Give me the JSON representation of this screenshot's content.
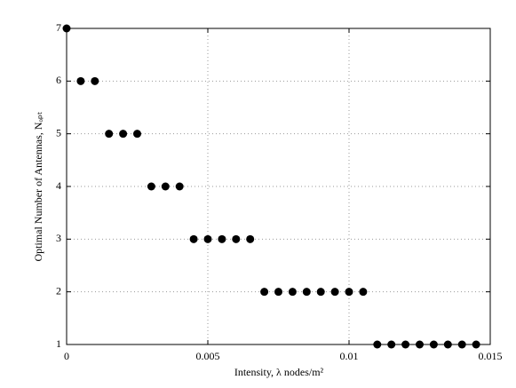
{
  "chart_data": {
    "type": "scatter",
    "xlabel": "Intensity, λ nodes/m²",
    "ylabel": "Optimal Number of Antennas, Nₒₚₜ",
    "x": [
      0,
      0.0005,
      0.001,
      0.0015,
      0.002,
      0.0025,
      0.003,
      0.0035,
      0.004,
      0.0045,
      0.005,
      0.0055,
      0.006,
      0.0065,
      0.007,
      0.0075,
      0.008,
      0.0085,
      0.009,
      0.0095,
      0.01,
      0.0105,
      0.011,
      0.0115,
      0.012,
      0.0125,
      0.013,
      0.0135,
      0.014,
      0.0145
    ],
    "values": [
      7,
      6,
      6,
      5,
      5,
      5,
      4,
      4,
      4,
      3,
      3,
      3,
      3,
      3,
      2,
      2,
      2,
      2,
      2,
      2,
      2,
      2,
      1,
      1,
      1,
      1,
      1,
      1,
      1,
      1
    ],
    "color": "#000000",
    "xlim": [
      0,
      0.015
    ],
    "xticks": [
      0,
      0.005,
      0.01,
      0.015
    ],
    "ylim": [
      1,
      7
    ],
    "yticks": [
      1,
      2,
      3,
      4,
      5,
      6,
      7
    ],
    "grid": true
  }
}
